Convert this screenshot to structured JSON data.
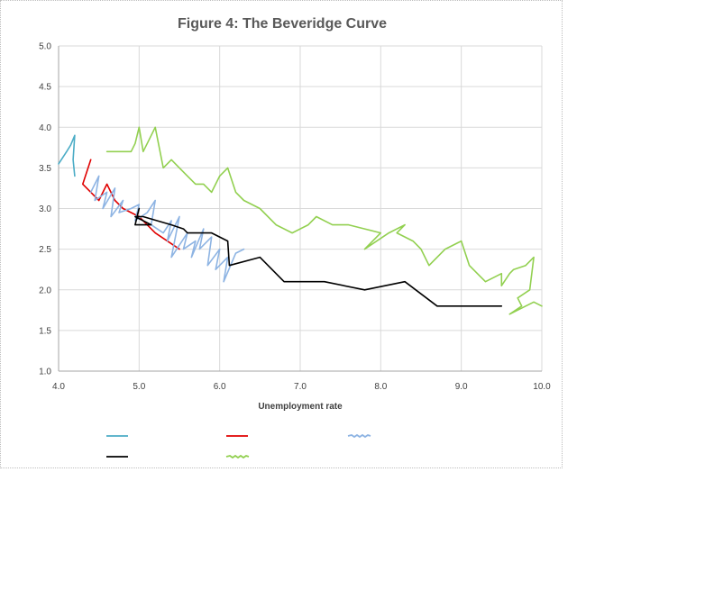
{
  "chart_data": {
    "type": "line",
    "title": "Figure 4: The Beveridge Curve",
    "xlabel": "Unemployment rate",
    "ylabel": "",
    "xlim": [
      4.0,
      10.0
    ],
    "ylim": [
      1.0,
      5.0
    ],
    "x_ticks": [
      "4.0",
      "5.0",
      "6.0",
      "7.0",
      "8.0",
      "9.0",
      "10.0"
    ],
    "y_ticks": [
      "1.0",
      "1.5",
      "2.0",
      "2.5",
      "3.0",
      "3.5",
      "4.0",
      "4.5",
      "5.0"
    ],
    "grid": true,
    "legend_position": "bottom",
    "series": [
      {
        "color": "#4bacc6",
        "points": [
          [
            4.0,
            3.55
          ],
          [
            4.1,
            3.7
          ],
          [
            4.15,
            3.78
          ],
          [
            4.2,
            3.9
          ],
          [
            4.18,
            3.6
          ],
          [
            4.2,
            3.4
          ]
        ]
      },
      {
        "color": "#e00000",
        "points": [
          [
            4.4,
            3.6
          ],
          [
            4.3,
            3.3
          ],
          [
            4.4,
            3.2
          ],
          [
            4.5,
            3.1
          ],
          [
            4.6,
            3.3
          ],
          [
            4.7,
            3.1
          ],
          [
            4.8,
            3.0
          ],
          [
            5.0,
            2.9
          ],
          [
            5.2,
            2.7
          ],
          [
            5.35,
            2.6
          ],
          [
            5.5,
            2.5
          ]
        ]
      },
      {
        "color": "#8eb4e3",
        "points": [
          [
            4.4,
            3.2
          ],
          [
            4.5,
            3.4
          ],
          [
            4.45,
            3.1
          ],
          [
            4.6,
            3.2
          ],
          [
            4.55,
            3.0
          ],
          [
            4.7,
            3.25
          ],
          [
            4.65,
            2.9
          ],
          [
            4.8,
            3.1
          ],
          [
            4.75,
            2.95
          ],
          [
            4.9,
            3.0
          ],
          [
            5.0,
            3.05
          ],
          [
            4.95,
            2.85
          ],
          [
            5.1,
            2.95
          ],
          [
            5.2,
            3.1
          ],
          [
            5.15,
            2.8
          ],
          [
            5.3,
            2.7
          ],
          [
            5.4,
            2.85
          ],
          [
            5.35,
            2.6
          ],
          [
            5.5,
            2.9
          ],
          [
            5.4,
            2.4
          ],
          [
            5.6,
            2.7
          ],
          [
            5.55,
            2.5
          ],
          [
            5.7,
            2.6
          ],
          [
            5.65,
            2.4
          ],
          [
            5.8,
            2.75
          ],
          [
            5.75,
            2.5
          ],
          [
            5.9,
            2.65
          ],
          [
            5.85,
            2.3
          ],
          [
            6.0,
            2.5
          ],
          [
            5.95,
            2.25
          ],
          [
            6.1,
            2.4
          ],
          [
            6.05,
            2.1
          ],
          [
            6.2,
            2.45
          ],
          [
            6.3,
            2.5
          ]
        ]
      },
      {
        "color": "#000000",
        "points": [
          [
            4.95,
            2.8
          ],
          [
            5.0,
            3.0
          ],
          [
            4.95,
            2.8
          ],
          [
            5.15,
            2.8
          ],
          [
            4.95,
            2.9
          ],
          [
            5.05,
            2.9
          ],
          [
            5.4,
            2.8
          ],
          [
            5.55,
            2.75
          ],
          [
            5.6,
            2.7
          ],
          [
            5.9,
            2.7
          ],
          [
            6.1,
            2.6
          ],
          [
            6.12,
            2.3
          ],
          [
            6.5,
            2.4
          ],
          [
            6.8,
            2.1
          ],
          [
            7.3,
            2.1
          ],
          [
            7.8,
            2.0
          ],
          [
            8.3,
            2.1
          ],
          [
            8.7,
            1.8
          ],
          [
            9.5,
            1.8
          ]
        ]
      },
      {
        "color": "#92d050",
        "points": [
          [
            4.6,
            3.7
          ],
          [
            4.9,
            3.7
          ],
          [
            4.95,
            3.8
          ],
          [
            5.0,
            4.0
          ],
          [
            5.05,
            3.7
          ],
          [
            5.1,
            3.8
          ],
          [
            5.2,
            4.0
          ],
          [
            5.3,
            3.5
          ],
          [
            5.4,
            3.6
          ],
          [
            5.5,
            3.5
          ],
          [
            5.6,
            3.4
          ],
          [
            5.7,
            3.3
          ],
          [
            5.8,
            3.3
          ],
          [
            5.9,
            3.2
          ],
          [
            6.0,
            3.4
          ],
          [
            6.1,
            3.5
          ],
          [
            6.2,
            3.2
          ],
          [
            6.3,
            3.1
          ],
          [
            6.5,
            3.0
          ],
          [
            6.7,
            2.8
          ],
          [
            6.9,
            2.7
          ],
          [
            7.1,
            2.8
          ],
          [
            7.2,
            2.9
          ],
          [
            7.4,
            2.8
          ],
          [
            7.6,
            2.8
          ],
          [
            7.8,
            2.75
          ],
          [
            8.0,
            2.7
          ],
          [
            7.8,
            2.5
          ],
          [
            8.1,
            2.7
          ],
          [
            8.3,
            2.8
          ],
          [
            8.2,
            2.7
          ],
          [
            8.4,
            2.6
          ],
          [
            8.5,
            2.5
          ],
          [
            8.6,
            2.3
          ],
          [
            8.8,
            2.5
          ],
          [
            9.0,
            2.6
          ],
          [
            9.1,
            2.3
          ],
          [
            9.2,
            2.2
          ],
          [
            9.3,
            2.1
          ],
          [
            9.4,
            2.15
          ],
          [
            9.5,
            2.2
          ],
          [
            9.5,
            2.05
          ],
          [
            9.6,
            2.2
          ],
          [
            9.65,
            2.25
          ],
          [
            9.8,
            2.3
          ],
          [
            9.9,
            2.4
          ],
          [
            9.85,
            2.0
          ],
          [
            9.7,
            1.9
          ],
          [
            9.75,
            1.8
          ],
          [
            9.6,
            1.7
          ],
          [
            9.8,
            1.8
          ],
          [
            9.9,
            1.85
          ],
          [
            10.0,
            1.8
          ]
        ]
      }
    ]
  }
}
